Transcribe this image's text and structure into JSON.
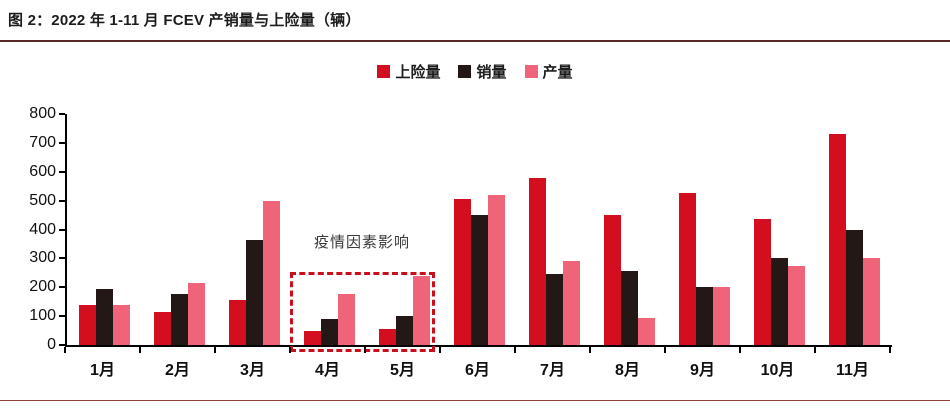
{
  "header": {
    "title": "图 2：2022 年 1-11 月 FCEV 产销量与上险量（辆）"
  },
  "annotation": {
    "text": "疫情因素影响",
    "box_months": [
      "4月",
      "5月"
    ],
    "box_color": "#c8101c"
  },
  "colors": {
    "insurance_red": "#d30e1f",
    "sales_black": "#231815",
    "production_pink": "#ef6478",
    "title_rule": "#582a28",
    "bottom_rule": "#8e4737",
    "axis": "#000000"
  },
  "chart_data": {
    "type": "bar",
    "title": "2022 年 1-11 月 FCEV 产销量与上险量（辆）",
    "categories": [
      "1月",
      "2月",
      "3月",
      "4月",
      "5月",
      "6月",
      "7月",
      "8月",
      "9月",
      "10月",
      "11月"
    ],
    "series": [
      {
        "name": "上险量",
        "color": "#d30e1f",
        "values": [
          140,
          115,
          155,
          50,
          55,
          505,
          580,
          450,
          525,
          435,
          730
        ]
      },
      {
        "name": "销量",
        "color": "#231815",
        "values": [
          193,
          178,
          365,
          90,
          100,
          450,
          245,
          255,
          200,
          300,
          400
        ]
      },
      {
        "name": "产量",
        "color": "#ef6478",
        "values": [
          140,
          215,
          500,
          175,
          240,
          520,
          290,
          95,
          200,
          275,
          300
        ]
      }
    ],
    "xlabel": "",
    "ylabel": "",
    "ylim": [
      0,
      800
    ],
    "ytick_step": 100,
    "yticks": [
      0,
      100,
      200,
      300,
      400,
      500,
      600,
      700,
      800
    ],
    "grid": false,
    "legend_position": "top",
    "annotation": "疫情因素影响",
    "annotation_box_months": [
      "4月",
      "5月"
    ]
  }
}
